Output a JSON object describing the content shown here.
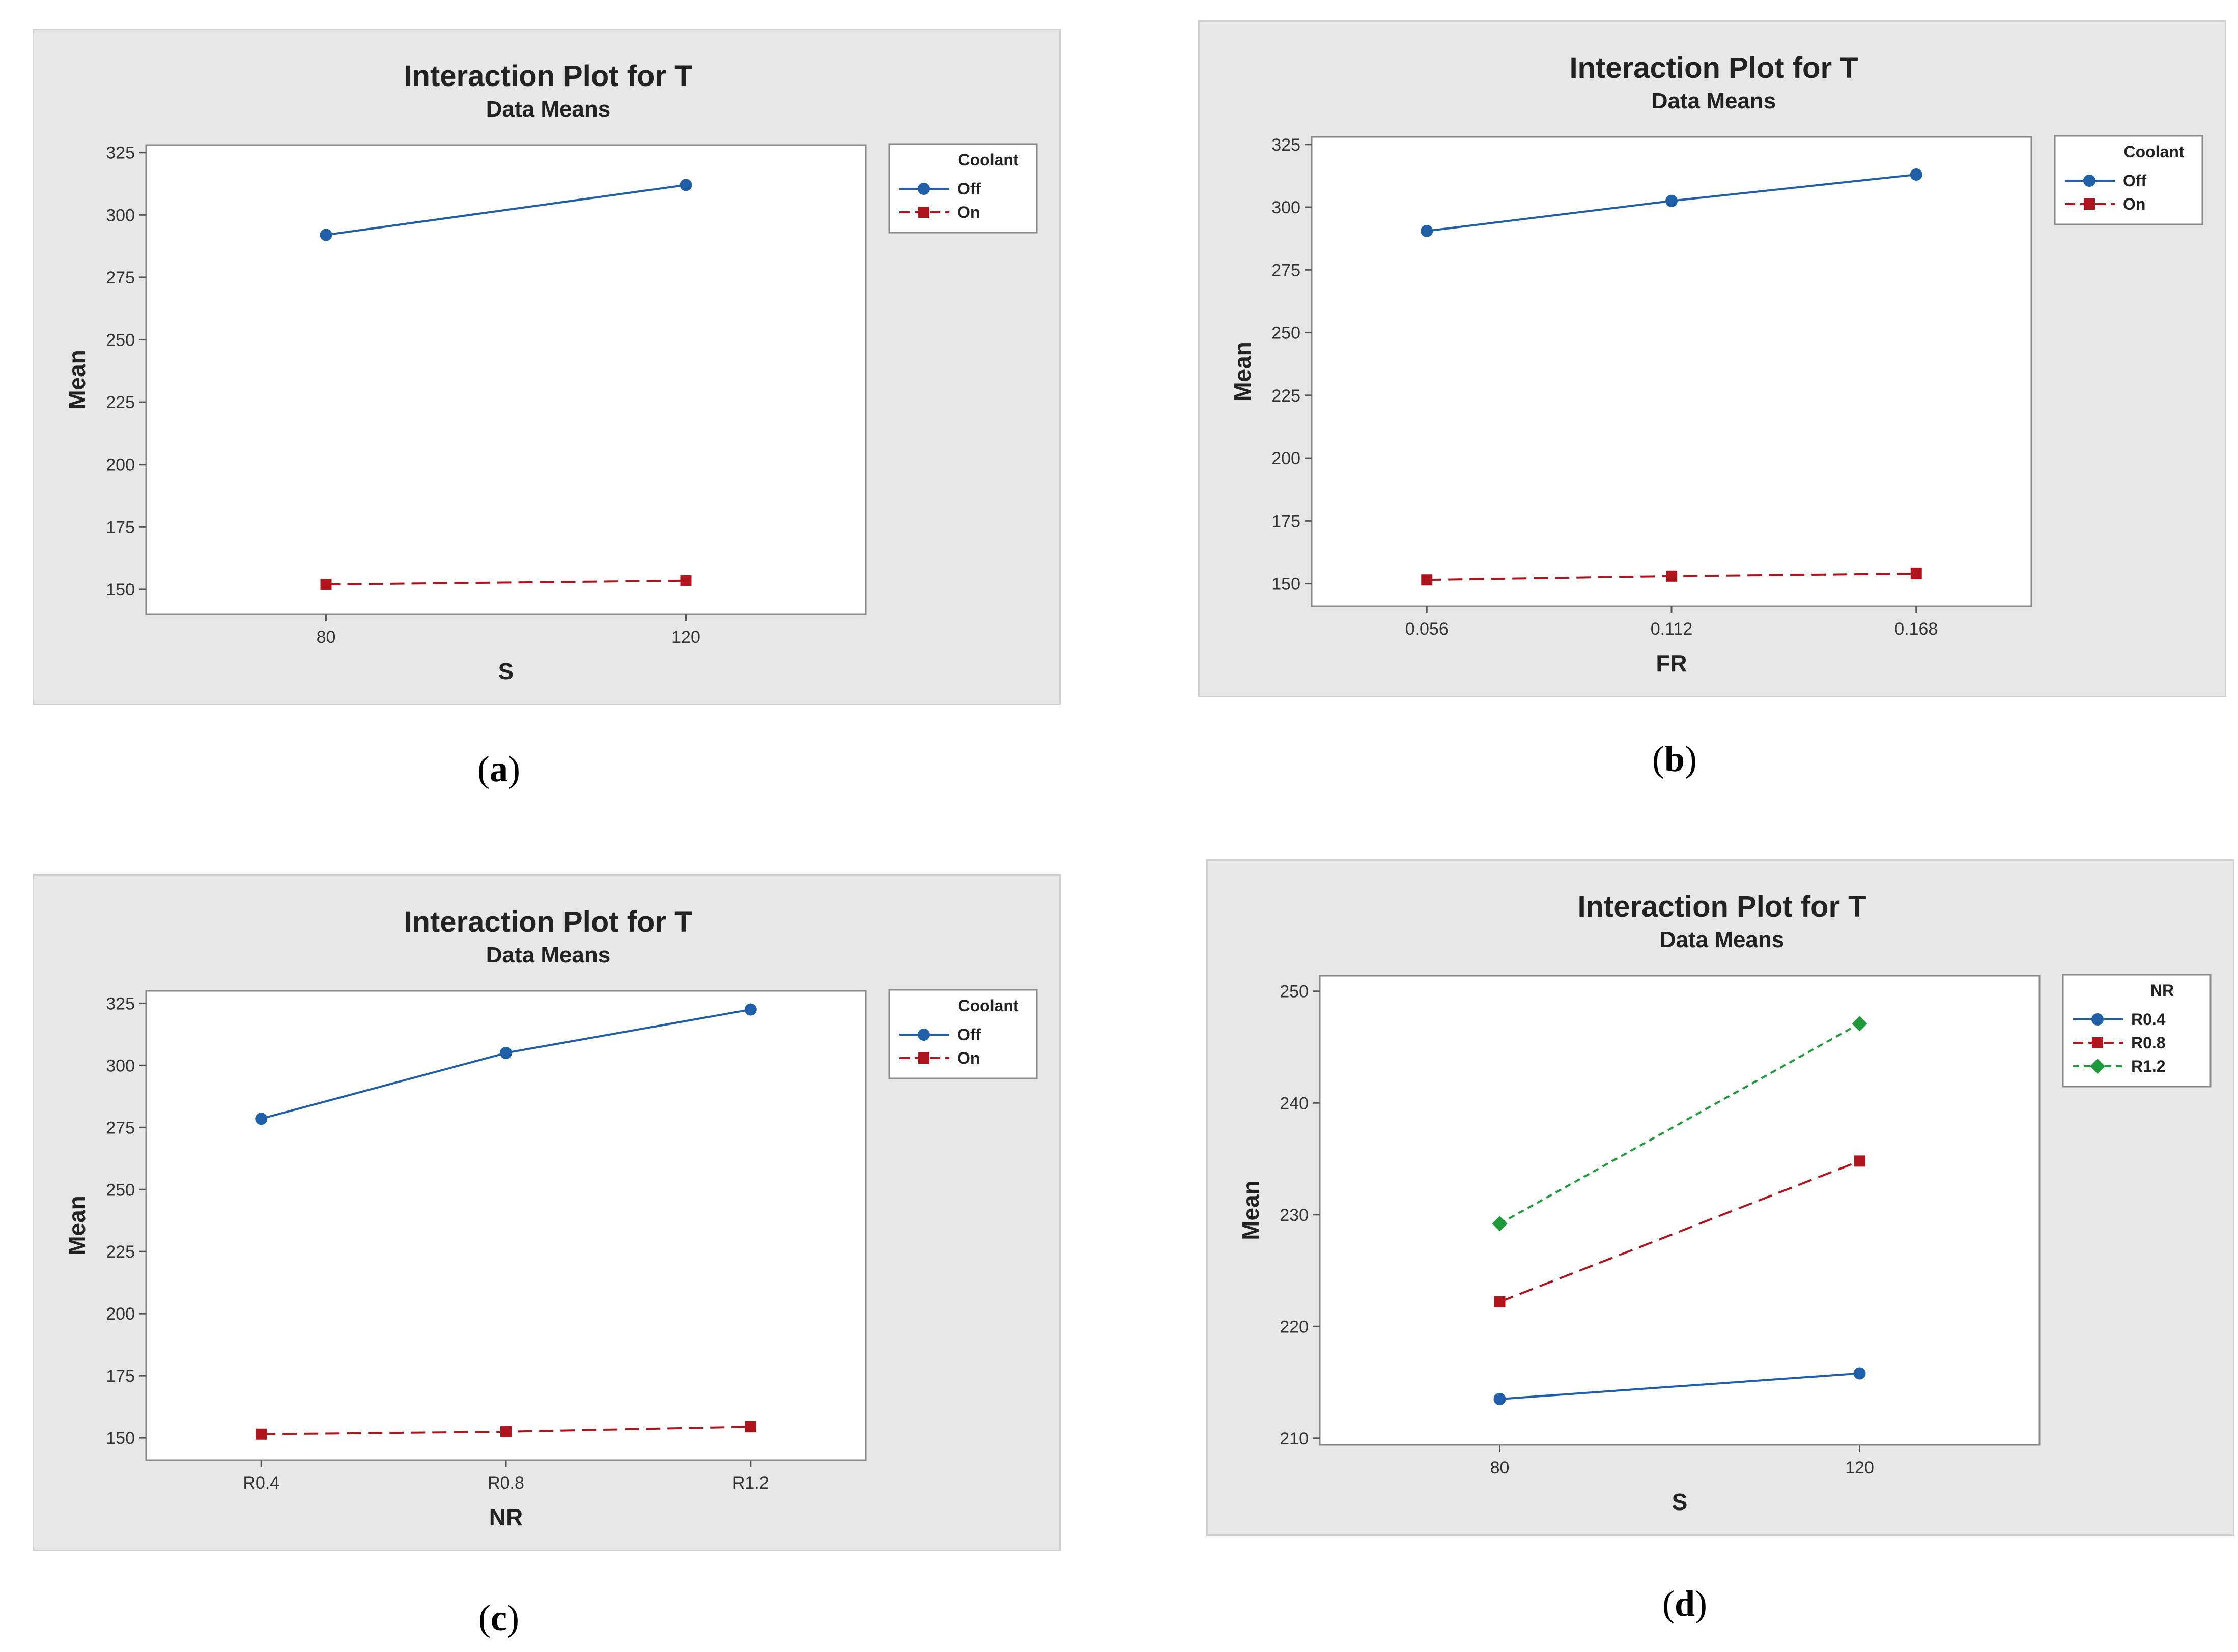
{
  "chart_data": [
    {
      "type": "line",
      "panel": "a",
      "title": "Interaction Plot for T",
      "subtitle": "Data Means",
      "xlabel": "S",
      "ylabel": "Mean",
      "categories": [
        "80",
        "120"
      ],
      "ylim": [
        140,
        328
      ],
      "yticks": [
        150,
        175,
        200,
        225,
        250,
        275,
        300,
        325
      ],
      "legend_title": "Coolant",
      "legend_position": "right",
      "series": [
        {
          "name": "Off",
          "values": [
            292,
            312
          ],
          "color": "#1f5fa8",
          "marker": "circle",
          "dash": "solid"
        },
        {
          "name": "On",
          "values": [
            152,
            153.5
          ],
          "color": "#b0141c",
          "marker": "square",
          "dash": "dashed"
        }
      ]
    },
    {
      "type": "line",
      "panel": "b",
      "title": "Interaction Plot for T",
      "subtitle": "Data Means",
      "xlabel": "FR",
      "ylabel": "Mean",
      "categories": [
        "0.056",
        "0.112",
        "0.168"
      ],
      "ylim": [
        141,
        328
      ],
      "yticks": [
        150,
        175,
        200,
        225,
        250,
        275,
        300,
        325
      ],
      "legend_title": "Coolant",
      "legend_position": "right",
      "series": [
        {
          "name": "Off",
          "values": [
            290.5,
            302.5,
            313
          ],
          "color": "#1f5fa8",
          "marker": "circle",
          "dash": "solid"
        },
        {
          "name": "On",
          "values": [
            151.5,
            153,
            154
          ],
          "color": "#b0141c",
          "marker": "square",
          "dash": "dashed"
        }
      ]
    },
    {
      "type": "line",
      "panel": "c",
      "title": "Interaction Plot for T",
      "subtitle": "Data Means",
      "xlabel": "NR",
      "ylabel": "Mean",
      "categories": [
        "R0.4",
        "R0.8",
        "R1.2"
      ],
      "ylim": [
        141,
        330
      ],
      "yticks": [
        150,
        175,
        200,
        225,
        250,
        275,
        300,
        325
      ],
      "legend_title": "Coolant",
      "legend_position": "right",
      "series": [
        {
          "name": "Off",
          "values": [
            278.5,
            305,
            322.5
          ],
          "color": "#1f5fa8",
          "marker": "circle",
          "dash": "solid"
        },
        {
          "name": "On",
          "values": [
            151.5,
            152.5,
            154.5
          ],
          "color": "#b0141c",
          "marker": "square",
          "dash": "dashed"
        }
      ]
    },
    {
      "type": "line",
      "panel": "d",
      "title": "Interaction Plot for T",
      "subtitle": "Data Means",
      "xlabel": "S",
      "ylabel": "Mean",
      "categories": [
        "80",
        "120"
      ],
      "ylim": [
        209.4,
        251.4
      ],
      "yticks": [
        210,
        220,
        230,
        240,
        250
      ],
      "legend_title": "NR",
      "legend_position": "right",
      "series": [
        {
          "name": "R0.4",
          "values": [
            213.5,
            215.8
          ],
          "color": "#1f5fa8",
          "marker": "circle",
          "dash": "solid"
        },
        {
          "name": "R0.8",
          "values": [
            222.2,
            234.8
          ],
          "color": "#b0141c",
          "marker": "square",
          "dash": "dashed"
        },
        {
          "name": "R1.2",
          "values": [
            229.2,
            247.1
          ],
          "color": "#1e9a3a",
          "marker": "diamond",
          "dash": "dotted"
        }
      ]
    }
  ],
  "captions": {
    "a": {
      "open": "(",
      "letter": "a",
      "close": ")"
    },
    "b": {
      "open": "(",
      "letter": "b",
      "close": ")"
    },
    "c": {
      "open": "(",
      "letter": "c",
      "close": ")"
    },
    "d": {
      "open": "(",
      "letter": "d",
      "close": ")"
    }
  }
}
